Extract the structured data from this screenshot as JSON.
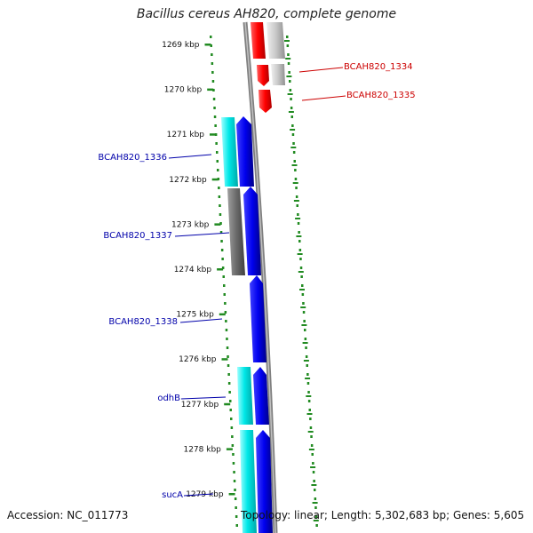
{
  "title": "Bacillus cereus AH820, complete genome",
  "footer": {
    "accession": "Accession: NC_011773",
    "topology": "Topology: linear; Length: 5,302,683 bp; Genes: 5,605"
  },
  "ticks": [
    "1269 kbp",
    "1270 kbp",
    "1271 kbp",
    "1272 kbp",
    "1273 kbp",
    "1274 kbp",
    "1275 kbp",
    "1276 kbp",
    "1277 kbp",
    "1278 kbp",
    "1279 kbp"
  ],
  "gene_labels": {
    "bcah820_1334": "BCAH820_1334",
    "bcah820_1335": "BCAH820_1335",
    "bcah820_1336": "BCAH820_1336",
    "bcah820_1337": "BCAH820_1337",
    "bcah820_1338": "BCAH820_1338",
    "odhb": "odhB",
    "suca": "sucA"
  },
  "colors": {
    "red_gene": "#ff0000",
    "blue_gene": "#0000ee",
    "cyan_gene": "#00e5e5",
    "gray_gene": "#707070",
    "lightgray_gene": "#c8c8c8",
    "red_label": "#cc0000",
    "blue_label": "#0000aa",
    "dots": "#228b22"
  }
}
